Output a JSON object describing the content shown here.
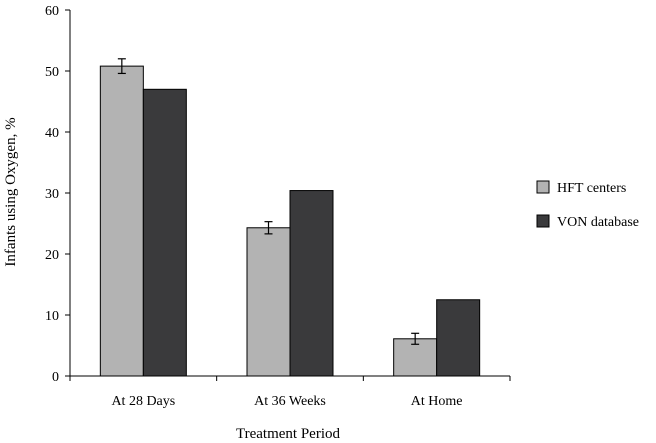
{
  "chart_data": {
    "type": "bar",
    "title": "",
    "xlabel": "Treatment Period",
    "ylabel": "Infants using Oxygen, %",
    "ylim": [
      0,
      60
    ],
    "yticks": [
      0,
      10,
      20,
      30,
      40,
      50,
      60
    ],
    "grid": false,
    "legend_position": "right",
    "categories": [
      "At 28 Days",
      "At 36 Weeks",
      "At Home"
    ],
    "series": [
      {
        "name": "HFT centers",
        "color": "#b3b3b3",
        "values": [
          50.8,
          24.3,
          6.1
        ],
        "error": [
          1.2,
          1.0,
          0.9
        ]
      },
      {
        "name": "VON database",
        "color": "#3a3a3c",
        "values": [
          47.0,
          30.4,
          12.5
        ]
      }
    ]
  }
}
